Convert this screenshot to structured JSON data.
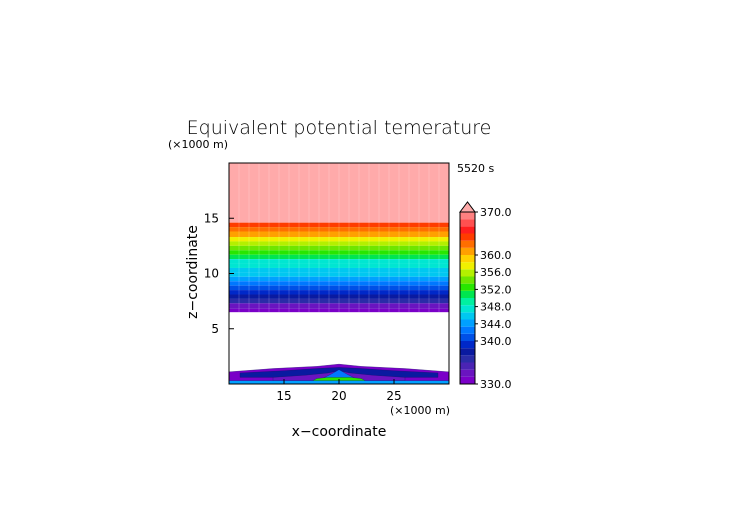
{
  "chart_data": {
    "type": "heatmap",
    "title": "Equivalent potential temerature",
    "time_label": "5520 s",
    "xlabel": "x−coordinate",
    "ylabel": "z−coordinate",
    "x_unit": "(×1000 m)",
    "y_unit": "(×1000 m)",
    "xlim": [
      10,
      30
    ],
    "ylim": [
      0,
      20
    ],
    "x_ticks": [
      "15",
      "20",
      "25"
    ],
    "y_ticks": [
      "5",
      "10",
      "15"
    ],
    "grid": false,
    "colorbar": {
      "min": 330.0,
      "max": 370.0,
      "tick_values": [
        330,
        340,
        344,
        348,
        352,
        356,
        360,
        370
      ],
      "tick_labels": [
        "330.0",
        "340.0",
        "344.0",
        "348.0",
        "352.0",
        "356.0",
        "360.0",
        "370.0"
      ],
      "colors": [
        "#7a00c8",
        "#6a14c0",
        "#4a24b4",
        "#2a2ca8",
        "#0a1aa0",
        "#0028c8",
        "#0050e6",
        "#0078ff",
        "#00a0ff",
        "#00c8f0",
        "#00e6d2",
        "#00f0a0",
        "#00e650",
        "#28e600",
        "#6ee600",
        "#b4f000",
        "#f0f000",
        "#ffd200",
        "#ffa000",
        "#ff6e00",
        "#ff3c00",
        "#ff1e1e",
        "#ff5050",
        "#ff8080"
      ],
      "over_color": "#ffaaaa"
    },
    "bands": [
      {
        "z0": 14.6,
        "z1": 20,
        "value": 370
      },
      {
        "z0": 14.2,
        "z1": 14.6,
        "value": 364
      },
      {
        "z0": 13.8,
        "z1": 14.2,
        "value": 362
      },
      {
        "z0": 13.3,
        "z1": 13.8,
        "value": 360
      },
      {
        "z0": 12.9,
        "z1": 13.3,
        "value": 358
      },
      {
        "z0": 12.5,
        "z1": 12.9,
        "value": 356
      },
      {
        "z0": 12.1,
        "z1": 12.5,
        "value": 354
      },
      {
        "z0": 11.7,
        "z1": 12.1,
        "value": 352
      },
      {
        "z0": 11.3,
        "z1": 11.7,
        "value": 350
      },
      {
        "z0": 10.9,
        "z1": 11.3,
        "value": 348
      },
      {
        "z0": 10.5,
        "z1": 10.9,
        "value": 347
      },
      {
        "z0": 10.1,
        "z1": 10.5,
        "value": 346
      },
      {
        "z0": 9.7,
        "z1": 10.1,
        "value": 345
      },
      {
        "z0": 9.3,
        "z1": 9.7,
        "value": 344
      },
      {
        "z0": 8.9,
        "z1": 9.3,
        "value": 342
      },
      {
        "z0": 8.5,
        "z1": 8.9,
        "value": 340
      },
      {
        "z0": 8.1,
        "z1": 8.5,
        "value": 339
      },
      {
        "z0": 7.7,
        "z1": 8.1,
        "value": 337
      },
      {
        "z0": 7.3,
        "z1": 7.7,
        "value": 335
      },
      {
        "z0": 6.8,
        "z1": 7.3,
        "value": 333
      },
      {
        "z0": 6.5,
        "z1": 6.8,
        "value": 331
      }
    ],
    "lower_field": [
      {
        "x": [
          10,
          14,
          18,
          20,
          22,
          26,
          30
        ],
        "z": [
          1.1,
          1.4,
          1.6,
          1.8,
          1.6,
          1.4,
          1.1
        ],
        "z_base": 0.2,
        "value": 331
      },
      {
        "x": [
          11,
          15,
          18,
          20,
          22,
          25,
          29
        ],
        "z": [
          1.0,
          1.2,
          1.4,
          1.5,
          1.4,
          1.2,
          1.0
        ],
        "z_base": 0.6,
        "value": 337
      },
      {
        "x": [
          14,
          17,
          19,
          20,
          21,
          23,
          26
        ],
        "z": [
          0.6,
          0.8,
          1.0,
          1.2,
          1.0,
          0.8,
          0.6
        ],
        "z_base": 0.3,
        "value": 333
      },
      {
        "x": [
          18.5,
          19.3,
          20,
          20.7,
          21.5
        ],
        "z": [
          0.5,
          0.9,
          1.3,
          0.9,
          0.5
        ],
        "z_base": 0.3,
        "value": 343
      },
      {
        "x": [
          17,
          18,
          19,
          20,
          21,
          22,
          23
        ],
        "z": [
          0.0,
          0.5,
          0.6,
          0.6,
          0.6,
          0.5,
          0.0
        ],
        "z_base": 0.0,
        "value": 352
      },
      {
        "x": [
          10,
          30
        ],
        "z": [
          0.3,
          0.3
        ],
        "z_base": 0.0,
        "value": 344
      }
    ]
  }
}
